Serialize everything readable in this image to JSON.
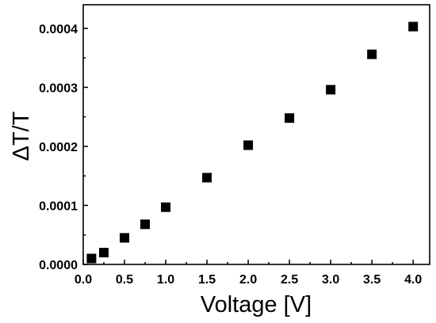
{
  "chart_data": {
    "type": "scatter",
    "title": "",
    "xlabel": "Voltage [V]",
    "ylabel": "ΔT/T",
    "xlim": [
      0.0,
      4.2
    ],
    "ylim": [
      0.0,
      0.00044
    ],
    "xticks": [
      "0.0",
      "0.5",
      "1.0",
      "1.5",
      "2.0",
      "2.5",
      "3.0",
      "3.5",
      "4.0"
    ],
    "yticks": [
      "0.0000",
      "0.0001",
      "0.0002",
      "0.0003",
      "0.0004"
    ],
    "grid": false,
    "legend": "none",
    "marker": "square",
    "marker_color": "#000000",
    "series": [
      {
        "x": [
          0.1,
          0.25,
          0.5,
          0.75,
          1.0,
          1.5,
          2.0,
          2.5,
          3.0,
          3.5,
          4.0
        ],
        "y": [
          1e-05,
          2e-05,
          4.5e-05,
          6.8e-05,
          9.7e-05,
          0.000147,
          0.000202,
          0.000248,
          0.000296,
          0.000356,
          0.000403
        ]
      }
    ]
  }
}
